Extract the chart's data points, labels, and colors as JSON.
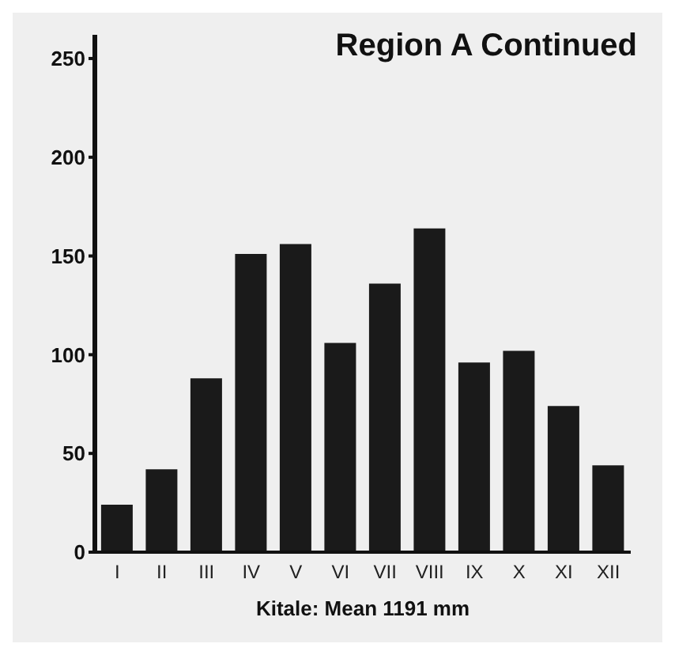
{
  "chart_data": {
    "type": "bar",
    "title": "Region A Continued",
    "xlabel": "Kitale: Mean 1191 mm",
    "categories": [
      "I",
      "II",
      "III",
      "IV",
      "V",
      "VI",
      "VII",
      "VIII",
      "IX",
      "X",
      "XI",
      "XII"
    ],
    "values": [
      24,
      42,
      88,
      151,
      156,
      106,
      136,
      164,
      96,
      102,
      74,
      44
    ],
    "color": "#1a1a1a",
    "ylim": [
      0,
      262
    ],
    "yticks": [
      0,
      50,
      100,
      150,
      200,
      250
    ],
    "grid": false,
    "legend": false
  }
}
